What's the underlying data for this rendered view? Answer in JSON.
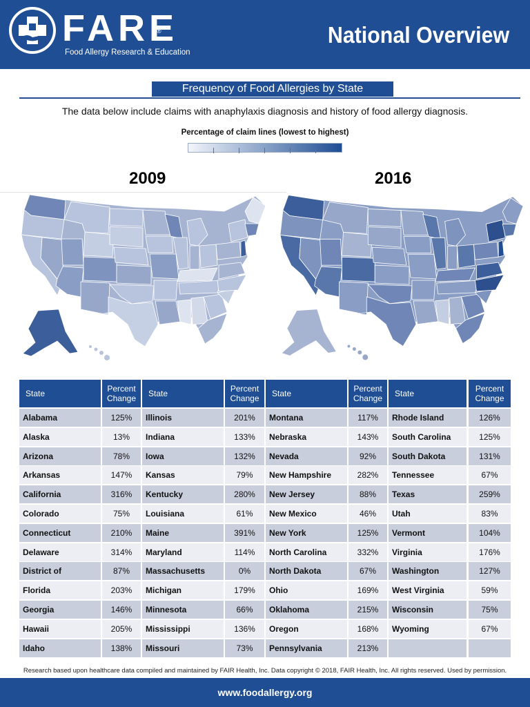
{
  "header": {
    "logo_name": "FARE",
    "logo_reg": "®",
    "logo_tagline": "Food Allergy Research & Education",
    "title": "National Overview"
  },
  "section": {
    "title": "Frequency of Food Allergies by State",
    "intro": "The data below include claims with anaphylaxis diagnosis and history of food allergy diagnosis.",
    "legend_label": "Percentage of claim lines (lowest to highest)"
  },
  "maps": {
    "left_year": "2009",
    "right_year": "2016"
  },
  "colors": {
    "brand": "#1f4e94",
    "row_dark": "#c9cedd",
    "row_light": "#edeef4"
  },
  "table": {
    "state_header": "State",
    "pct_header_line1": "Percent",
    "pct_header_line2": "Change",
    "columns": [
      [
        [
          "Alabama",
          "125%"
        ],
        [
          "Alaska",
          "13%"
        ],
        [
          "Arizona",
          "78%"
        ],
        [
          "Arkansas",
          "147%"
        ],
        [
          "California",
          "316%"
        ],
        [
          "Colorado",
          "75%"
        ],
        [
          "Connecticut",
          "210%"
        ],
        [
          "Delaware",
          "314%"
        ],
        [
          "District of Columbia",
          "87%"
        ],
        [
          "Florida",
          "203%"
        ],
        [
          "Georgia",
          "146%"
        ],
        [
          "Hawaii",
          "205%"
        ],
        [
          "Idaho",
          "138%"
        ]
      ],
      [
        [
          "Illinois",
          "201%"
        ],
        [
          "Indiana",
          "133%"
        ],
        [
          "Iowa",
          "132%"
        ],
        [
          "Kansas",
          "79%"
        ],
        [
          "Kentucky",
          "280%"
        ],
        [
          "Louisiana",
          "61%"
        ],
        [
          "Maine",
          "391%"
        ],
        [
          "Maryland",
          "114%"
        ],
        [
          "Massachusetts",
          "0%"
        ],
        [
          "Michigan",
          "179%"
        ],
        [
          "Minnesota",
          "66%"
        ],
        [
          "Mississippi",
          "136%"
        ],
        [
          "Missouri",
          "73%"
        ]
      ],
      [
        [
          "Montana",
          "117%"
        ],
        [
          "Nebraska",
          "143%"
        ],
        [
          "Nevada",
          "92%"
        ],
        [
          "New Hampshire",
          "282%"
        ],
        [
          "New Jersey",
          "88%"
        ],
        [
          "New Mexico",
          "46%"
        ],
        [
          "New York",
          "125%"
        ],
        [
          "North Carolina",
          "332%"
        ],
        [
          "North Dakota",
          "67%"
        ],
        [
          "Ohio",
          "169%"
        ],
        [
          "Oklahoma",
          "215%"
        ],
        [
          "Oregon",
          "168%"
        ],
        [
          "Pennsylvania",
          "213%"
        ]
      ],
      [
        [
          "Rhode Island",
          "126%"
        ],
        [
          "South Carolina",
          "125%"
        ],
        [
          "South Dakota",
          "131%"
        ],
        [
          "Tennessee",
          "67%"
        ],
        [
          "Texas",
          "259%"
        ],
        [
          "Utah",
          "83%"
        ],
        [
          "Vermont",
          "104%"
        ],
        [
          "Virginia",
          "176%"
        ],
        [
          "Washington",
          "127%"
        ],
        [
          "West Virginia",
          "59%"
        ],
        [
          "Wisconsin",
          "75%"
        ],
        [
          "Wyoming",
          "67%"
        ],
        [
          "",
          ""
        ]
      ]
    ]
  },
  "footnote": "Research based upon healthcare data compiled and maintained by FAIR Health, Inc. Data copyright © 2018, FAIR Health, Inc. All rights reserved. Used by permission.",
  "footer": {
    "url": "www.foodallergy.org"
  }
}
